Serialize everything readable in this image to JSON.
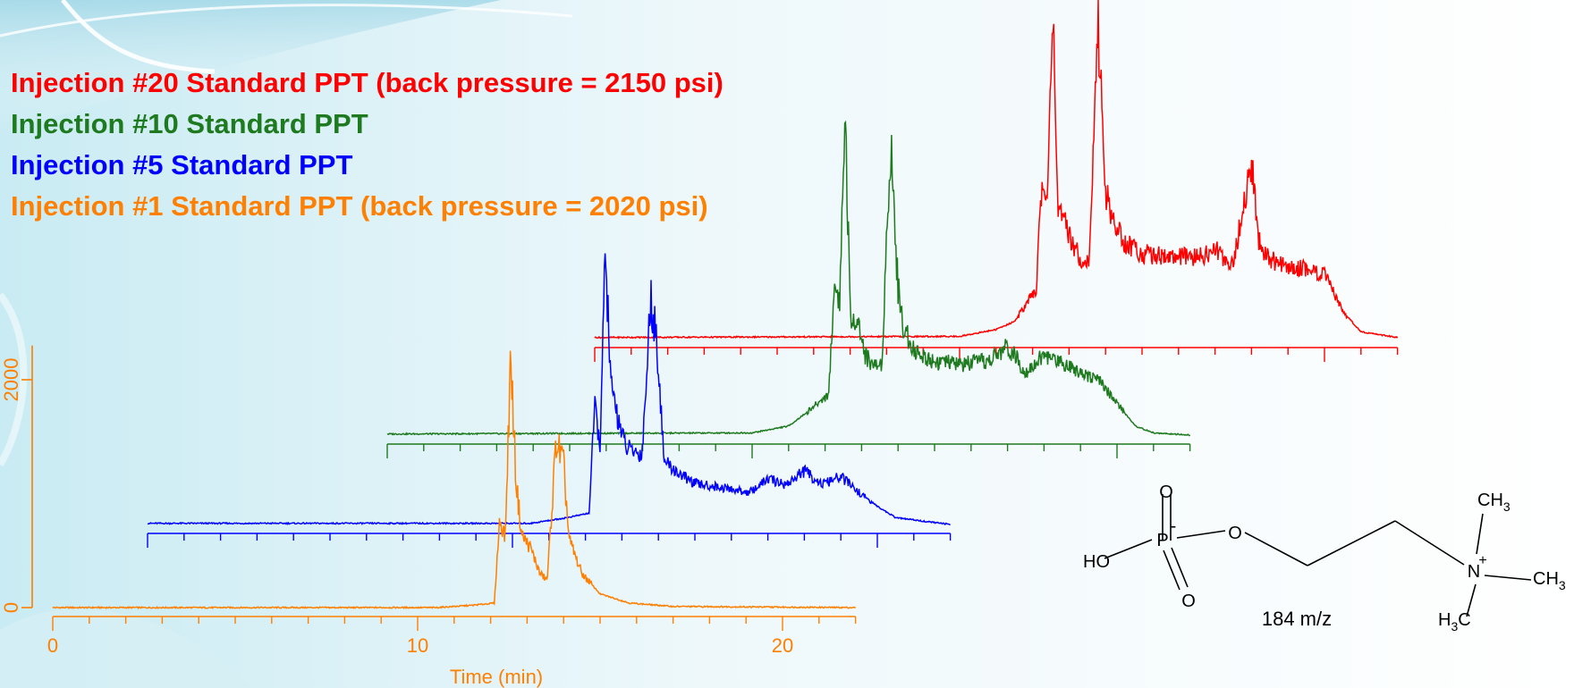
{
  "legend": [
    {
      "text": "Injection #20 Standard PPT (back pressure = 2150 psi)",
      "color": "#ff0000"
    },
    {
      "text": "Injection #10 Standard PPT",
      "color": "#1e7a1e"
    },
    {
      "text": "Injection #5 Standard PPT",
      "color": "#0000ff"
    },
    {
      "text": "Injection #1 Standard PPT (back pressure = 2020 psi)",
      "color": "#ff7f00"
    }
  ],
  "chart_data": {
    "type": "line",
    "title": "",
    "xlabel": "Time (min)",
    "ylabel": "",
    "xlim": [
      0,
      22
    ],
    "ylim": [
      0,
      2300
    ],
    "x_ticks": [
      "0",
      "10",
      "20"
    ],
    "y_ticks": [
      "0",
      "2000"
    ],
    "axis_color": "#ff7f00",
    "grid": false,
    "layout": "offset-stacked traces (waterfall), each later injection shifted right and up",
    "series": [
      {
        "name": "Injection #1 Standard PPT (back pressure = 2020 psi)",
        "color": "#ff7f00",
        "points": [
          [
            0,
            0
          ],
          [
            10.5,
            0
          ],
          [
            11.5,
            20
          ],
          [
            12.1,
            40
          ],
          [
            12.25,
            780
          ],
          [
            12.4,
            620
          ],
          [
            12.55,
            2210
          ],
          [
            12.7,
            1100
          ],
          [
            12.85,
            640
          ],
          [
            13.1,
            520
          ],
          [
            13.35,
            300
          ],
          [
            13.55,
            240
          ],
          [
            13.8,
            1470
          ],
          [
            14.0,
            1250
          ],
          [
            14.15,
            600
          ],
          [
            14.5,
            300
          ],
          [
            15.0,
            120
          ],
          [
            15.8,
            40
          ],
          [
            17.0,
            10
          ],
          [
            22.0,
            0
          ]
        ]
      },
      {
        "name": "Injection #5 Standard PPT",
        "color": "#0000ff",
        "points": [
          [
            0,
            10
          ],
          [
            10.5,
            10
          ],
          [
            11.5,
            60
          ],
          [
            12.1,
            100
          ],
          [
            12.25,
            1030
          ],
          [
            12.4,
            700
          ],
          [
            12.55,
            2390
          ],
          [
            12.7,
            1200
          ],
          [
            12.85,
            1000
          ],
          [
            13.1,
            680
          ],
          [
            13.35,
            640
          ],
          [
            13.55,
            610
          ],
          [
            13.8,
            2010
          ],
          [
            14.0,
            1450
          ],
          [
            14.15,
            560
          ],
          [
            14.5,
            460
          ],
          [
            15.0,
            360
          ],
          [
            15.8,
            320
          ],
          [
            16.5,
            280
          ],
          [
            17.0,
            400
          ],
          [
            17.5,
            350
          ],
          [
            18.0,
            470
          ],
          [
            18.5,
            350
          ],
          [
            19.0,
            420
          ],
          [
            19.5,
            280
          ],
          [
            20.0,
            160
          ],
          [
            20.5,
            60
          ],
          [
            22.0,
            0
          ]
        ]
      },
      {
        "name": "Injection #10 Standard PPT",
        "color": "#1e7a1e",
        "points": [
          [
            0,
            10
          ],
          [
            10.0,
            20
          ],
          [
            11.0,
            80
          ],
          [
            11.5,
            200
          ],
          [
            12.1,
            360
          ],
          [
            12.25,
            1310
          ],
          [
            12.4,
            1200
          ],
          [
            12.55,
            2850
          ],
          [
            12.7,
            950
          ],
          [
            12.85,
            1070
          ],
          [
            13.1,
            700
          ],
          [
            13.35,
            610
          ],
          [
            13.55,
            620
          ],
          [
            13.8,
            2580
          ],
          [
            14.0,
            1280
          ],
          [
            14.15,
            940
          ],
          [
            14.5,
            720
          ],
          [
            15.0,
            650
          ],
          [
            15.8,
            620
          ],
          [
            16.5,
            650
          ],
          [
            17.0,
            780
          ],
          [
            17.5,
            560
          ],
          [
            18.0,
            700
          ],
          [
            18.5,
            640
          ],
          [
            19.0,
            560
          ],
          [
            19.5,
            480
          ],
          [
            20.0,
            280
          ],
          [
            20.5,
            80
          ],
          [
            21.0,
            20
          ],
          [
            22.0,
            0
          ]
        ]
      },
      {
        "name": "Injection #20 Standard PPT (back pressure = 2150 psi)",
        "color": "#ff0000",
        "points": [
          [
            0,
            10
          ],
          [
            10.0,
            20
          ],
          [
            11.0,
            80
          ],
          [
            11.5,
            150
          ],
          [
            12.1,
            430
          ],
          [
            12.25,
            1370
          ],
          [
            12.4,
            1150
          ],
          [
            12.55,
            3040
          ],
          [
            12.7,
            1080
          ],
          [
            12.85,
            1030
          ],
          [
            13.1,
            840
          ],
          [
            13.35,
            680
          ],
          [
            13.55,
            670
          ],
          [
            13.8,
            2750
          ],
          [
            14.0,
            1300
          ],
          [
            14.15,
            1080
          ],
          [
            14.5,
            850
          ],
          [
            15.0,
            750
          ],
          [
            15.8,
            720
          ],
          [
            16.5,
            710
          ],
          [
            17.0,
            780
          ],
          [
            17.5,
            650
          ],
          [
            18.0,
            1550
          ],
          [
            18.2,
            850
          ],
          [
            18.5,
            700
          ],
          [
            19.0,
            620
          ],
          [
            19.5,
            620
          ],
          [
            20.0,
            560
          ],
          [
            20.5,
            240
          ],
          [
            21.0,
            60
          ],
          [
            22.0,
            10
          ]
        ]
      }
    ]
  },
  "structure": {
    "oxygen_top": "O",
    "phosphorus": "P",
    "minus": "-",
    "oxygen_ester": "O",
    "oxygen_bottom": "O",
    "hydroxyl": "HO",
    "nitrogen": "N",
    "plus": "+",
    "methyl_top": "CH",
    "methyl_top_sub": "3",
    "methyl_right": "CH",
    "methyl_right_sub": "3",
    "methyl_bottom_h": "H",
    "methyl_bottom_sub": "3",
    "methyl_bottom_c": "C",
    "mass_label": "184 m/z"
  }
}
